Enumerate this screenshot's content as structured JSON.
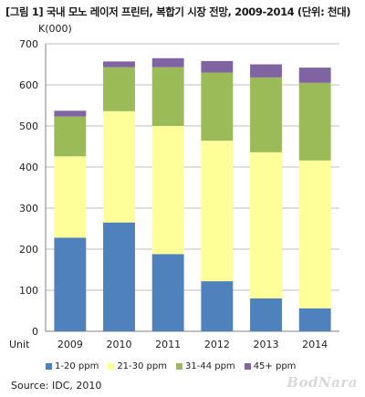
{
  "title": "[그림 1] 국내 모노 레이저 프린터, 복합기 시장 전망, 2009-2014 (단위: 천대)",
  "unit_label": "K(000)",
  "source": "Source: IDC, 2010",
  "logo": "BodNara",
  "chart_data": {
    "type": "bar",
    "stacked": true,
    "title": "[그림 1] 국내 모노 레이저 프린터, 복합기 시장 전망, 2009-2014 (단위: 천대)",
    "xlabel": "Unit",
    "ylabel": "K(000)",
    "categories": [
      "2009",
      "2010",
      "2011",
      "2012",
      "2013",
      "2014"
    ],
    "ylim": [
      0,
      700
    ],
    "yticks": [
      "0",
      "100",
      "200",
      "300",
      "400",
      "500",
      "600",
      "700"
    ],
    "grid": true,
    "legend": "bottom",
    "series": [
      {
        "name": "1-20 ppm",
        "color": "#4f81bd",
        "values": [
          228,
          265,
          188,
          122,
          80,
          56
        ]
      },
      {
        "name": "21-30 ppm",
        "color": "#ffff99",
        "values": [
          198,
          271,
          312,
          342,
          356,
          360
        ]
      },
      {
        "name": "31-44 ppm",
        "color": "#9bbb59",
        "values": [
          97,
          107,
          143,
          166,
          182,
          189
        ]
      },
      {
        "name": "45+ ppm",
        "color": "#8064a2",
        "values": [
          14,
          14,
          22,
          28,
          32,
          37
        ]
      }
    ]
  }
}
